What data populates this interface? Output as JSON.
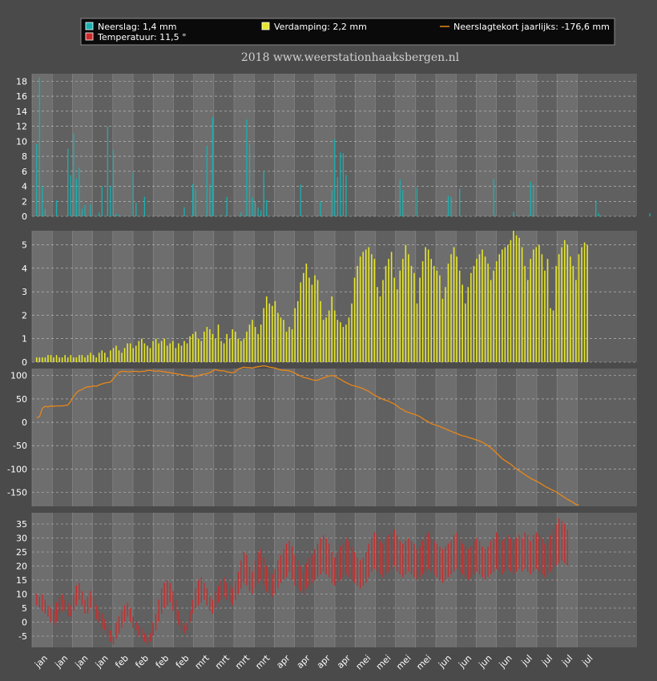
{
  "legend": {
    "neerslag": "Neerslag: 1,4 mm",
    "verdamping": "Verdamping: 2,2 mm",
    "tekort": "Neerslagtekort jaarlijks: -176,6 mm",
    "temperatuur": "Temperatuur: 11,5 °"
  },
  "subtitle": "2018  www.weerstationhaaksbergen.nl",
  "colors": {
    "background": "#4a4a4a",
    "plot_light": "#6e6e6e",
    "plot_dark": "#606060",
    "neerslag": "#1ab0b0",
    "verdamping": "#e6e62a",
    "tekort": "#e8861a",
    "temperatuur": "#cc2a2a"
  },
  "chart_data": [
    {
      "type": "bar",
      "name": "neerslag",
      "unit": "mm",
      "ylim": [
        0,
        19
      ],
      "yticks": [
        "0",
        "2",
        "4",
        "6",
        "8",
        "10",
        "12",
        "14",
        "16",
        "18"
      ],
      "tickvals": [
        0,
        2,
        4,
        6,
        8,
        10,
        12,
        14,
        16,
        18
      ],
      "grid": true,
      "values": [
        9.6,
        18.5,
        4,
        1,
        0,
        0,
        0,
        2.1,
        0,
        0,
        0,
        9,
        5.5,
        11,
        5,
        6.5,
        1,
        1.5,
        0,
        1.6,
        0,
        0,
        0.5,
        4,
        0,
        12,
        4,
        8.9,
        0.3,
        0.2,
        0,
        0,
        0,
        0,
        5.8,
        1.8,
        0,
        0,
        2.6,
        0,
        0,
        0,
        0,
        0,
        0,
        0,
        0,
        0,
        0,
        0,
        0,
        0,
        1.2,
        0,
        0,
        4.3,
        3.6,
        0,
        0,
        0,
        9.4,
        4.2,
        13.2,
        0,
        0,
        0.2,
        0,
        2.6,
        0,
        0,
        0,
        0,
        0.5,
        0,
        12.9,
        9.7,
        2.5,
        1.9,
        1.2,
        0.8,
        6,
        2.2,
        0,
        0,
        0,
        0,
        0,
        0,
        0,
        0,
        0,
        0,
        0,
        4.2,
        0,
        0,
        0,
        0,
        0,
        0,
        2,
        0,
        0,
        0,
        3.5,
        10.3,
        5.2,
        8.5,
        8.4,
        5.5,
        0,
        0,
        0,
        0,
        0,
        0,
        0,
        0,
        0,
        0,
        0,
        0,
        0,
        0,
        0,
        0,
        0,
        0,
        4.9,
        3.5,
        0,
        0,
        0,
        0,
        3.8,
        0,
        0,
        0,
        0,
        0,
        0,
        0,
        0,
        0,
        0,
        2.7,
        2.6,
        0,
        0,
        3.7,
        0,
        0,
        0,
        0,
        0,
        0,
        0,
        0,
        0,
        0,
        0,
        5,
        0,
        0,
        0,
        0,
        0,
        0,
        0.6,
        0,
        0,
        0,
        0,
        0,
        4.6,
        4.2,
        0,
        0,
        0,
        0,
        0,
        0,
        0,
        0,
        0,
        0,
        0,
        0,
        0,
        0,
        0,
        0,
        0,
        0,
        0,
        0,
        0,
        2.1,
        0.4,
        0.1,
        0,
        0,
        0,
        0,
        0,
        0,
        0,
        0,
        0,
        0,
        0,
        0,
        0,
        0,
        0,
        0,
        0.4,
        0,
        0,
        0,
        0,
        0,
        0,
        0,
        0,
        0,
        0,
        0,
        0,
        0,
        0,
        0,
        0,
        0,
        0,
        0,
        0,
        0,
        0,
        0,
        0,
        0,
        0,
        0,
        0,
        0,
        0,
        0,
        0,
        0,
        0,
        0,
        0,
        0,
        0,
        0,
        0,
        0,
        0,
        0
      ]
    },
    {
      "type": "bar",
      "name": "verdamping",
      "unit": "mm",
      "ylim": [
        0,
        5.6
      ],
      "yticks": [
        "0",
        "1",
        "2",
        "3",
        "4",
        "5"
      ],
      "tickvals": [
        0,
        1,
        2,
        3,
        4,
        5
      ],
      "grid": true,
      "values": [
        0.2,
        0.2,
        0.2,
        0.2,
        0.3,
        0.3,
        0.2,
        0.3,
        0.2,
        0.2,
        0.3,
        0.2,
        0.3,
        0.2,
        0.2,
        0.3,
        0.3,
        0.2,
        0.3,
        0.4,
        0.3,
        0.2,
        0.4,
        0.5,
        0.4,
        0.2,
        0.5,
        0.6,
        0.7,
        0.5,
        0.4,
        0.6,
        0.8,
        0.8,
        0.6,
        0.7,
        0.9,
        1.0,
        0.8,
        0.7,
        0.6,
        0.9,
        1.0,
        0.8,
        0.9,
        1.0,
        0.7,
        0.8,
        0.9,
        0.6,
        0.8,
        0.7,
        0.9,
        0.8,
        1.1,
        1.2,
        1.3,
        1.0,
        0.9,
        1.3,
        1.5,
        1.4,
        1.2,
        1.0,
        1.6,
        0.9,
        0.8,
        1.2,
        1.0,
        1.4,
        1.3,
        1.0,
        0.9,
        1.0,
        1.3,
        1.6,
        1.8,
        1.5,
        1.2,
        1.6,
        2.3,
        2.8,
        2.5,
        2.4,
        2.6,
        2.1,
        1.9,
        1.8,
        1.3,
        1.5,
        1.4,
        2.3,
        2.6,
        3.4,
        3.8,
        4.2,
        3.6,
        3.3,
        3.7,
        3.5,
        2.6,
        1.8,
        1.9,
        2.2,
        2.8,
        2.2,
        1.8,
        1.7,
        1.5,
        1.6,
        1.9,
        2.5,
        3.6,
        4.1,
        4.5,
        4.7,
        4.8,
        4.9,
        4.6,
        4.4,
        3.2,
        2.8,
        3.5,
        4.1,
        4.4,
        4.7,
        3.6,
        3.1,
        3.9,
        4.4,
        5.0,
        4.6,
        4.1,
        3.8,
        2.5,
        3.6,
        4.3,
        4.9,
        4.8,
        4.4,
        4.1,
        3.9,
        3.7,
        2.7,
        3.2,
        4.2,
        4.6,
        4.9,
        4.5,
        3.9,
        3.3,
        2.5,
        3.2,
        3.8,
        4.1,
        4.4,
        4.6,
        4.8,
        4.5,
        4.2,
        3.5,
        3.9,
        4.3,
        4.6,
        4.8,
        4.9,
        5.0,
        5.2,
        5.6,
        5.4,
        5.3,
        4.9,
        4.1,
        3.5,
        4.4,
        4.8,
        4.9,
        5.0,
        4.6,
        3.9,
        4.4,
        2.3,
        2.2,
        4.1,
        4.6,
        4.9,
        5.2,
        5.0,
        4.5,
        4.1,
        3.5,
        4.6,
        4.9,
        5.1,
        5.0
      ],
      "note": ""
    },
    {
      "type": "line",
      "name": "neerslagtekort",
      "unit": "mm",
      "ylim": [
        -180,
        115
      ],
      "yticks": [
        "100",
        "50",
        "0",
        "-50",
        "-100",
        "-150"
      ],
      "tickvals": [
        100,
        50,
        0,
        -50,
        -100,
        -150
      ],
      "grid": true,
      "values": [
        10,
        12,
        30,
        34,
        33,
        35,
        34,
        35,
        35,
        35,
        36,
        37,
        45,
        55,
        63,
        68,
        70,
        74,
        76,
        76,
        78,
        77,
        80,
        82,
        84,
        85,
        86,
        93,
        100,
        107,
        109,
        109,
        108,
        108,
        109,
        109,
        108,
        109,
        109,
        111,
        111,
        110,
        109,
        110,
        109,
        108,
        107,
        106,
        105,
        104,
        103,
        102,
        101,
        100,
        99,
        98,
        98,
        100,
        102,
        103,
        104,
        106,
        110,
        113,
        111,
        110,
        110,
        108,
        107,
        106,
        108,
        114,
        116,
        118,
        117,
        117,
        116,
        118,
        119,
        120,
        121,
        120,
        118,
        117,
        116,
        114,
        112,
        111,
        111,
        110,
        108,
        105,
        102,
        99,
        96,
        95,
        93,
        91,
        90,
        90,
        93,
        95,
        97,
        99,
        100,
        99,
        95,
        92,
        88,
        85,
        82,
        79,
        78,
        76,
        74,
        72,
        69,
        66,
        62,
        58,
        55,
        52,
        49,
        47,
        45,
        42,
        39,
        35,
        30,
        27,
        23,
        21,
        19,
        17,
        15,
        12,
        8,
        4,
        1,
        -3,
        -5,
        -7,
        -9,
        -12,
        -14,
        -17,
        -19,
        -22,
        -24,
        -27,
        -29,
        -30,
        -32,
        -34,
        -36,
        -38,
        -40,
        -43,
        -46,
        -50,
        -55,
        -60,
        -66,
        -72,
        -78,
        -82,
        -86,
        -90,
        -95,
        -100,
        -104,
        -108,
        -112,
        -116,
        -120,
        -123,
        -126,
        -129,
        -133,
        -137,
        -140,
        -143,
        -146,
        -149,
        -153,
        -157,
        -161,
        -165,
        -168,
        -172,
        -176,
        -176.6
      ],
      "note": ""
    },
    {
      "type": "bar",
      "name": "temperatuur",
      "unit": "°C",
      "ylim": [
        -9,
        39
      ],
      "yticks": [
        "35",
        "30",
        "25",
        "20",
        "15",
        "10",
        "5",
        "0",
        "-5"
      ],
      "tickvals": [
        35,
        30,
        25,
        20,
        15,
        10,
        5,
        0,
        -5
      ],
      "grid": true,
      "ranges": [
        [
          6,
          10
        ],
        [
          5,
          9
        ],
        [
          4,
          10
        ],
        [
          3,
          8
        ],
        [
          2,
          6
        ],
        [
          0,
          5
        ],
        [
          -1,
          4
        ],
        [
          0,
          7
        ],
        [
          3,
          9
        ],
        [
          4,
          10
        ],
        [
          4,
          8
        ],
        [
          2,
          7
        ],
        [
          2,
          6
        ],
        [
          4,
          10
        ],
        [
          6,
          13
        ],
        [
          8,
          14
        ],
        [
          6,
          11
        ],
        [
          3,
          8
        ],
        [
          3,
          9
        ],
        [
          5,
          11
        ],
        [
          4,
          9
        ],
        [
          1,
          6
        ],
        [
          0,
          4
        ],
        [
          -2,
          3
        ],
        [
          -3,
          1
        ],
        [
          -5,
          -1
        ],
        [
          -7,
          -3
        ],
        [
          -8,
          -5
        ],
        [
          -6,
          0
        ],
        [
          -4,
          2
        ],
        [
          -2,
          4
        ],
        [
          0,
          6
        ],
        [
          2,
          7
        ],
        [
          0,
          5
        ],
        [
          -2,
          2
        ],
        [
          -3,
          0
        ],
        [
          -5,
          -1
        ],
        [
          -6,
          -2
        ],
        [
          -7,
          -4
        ],
        [
          -8,
          -5
        ],
        [
          -7,
          -4
        ],
        [
          -5,
          0
        ],
        [
          -3,
          3
        ],
        [
          0,
          8
        ],
        [
          3,
          12
        ],
        [
          5,
          14
        ],
        [
          6,
          15
        ],
        [
          7,
          14
        ],
        [
          4,
          11
        ],
        [
          1,
          8
        ],
        [
          -1,
          4
        ],
        [
          -3,
          1
        ],
        [
          -4,
          -1
        ],
        [
          -3,
          0
        ],
        [
          0,
          4
        ],
        [
          3,
          8
        ],
        [
          5,
          12
        ],
        [
          6,
          15
        ],
        [
          7,
          16
        ],
        [
          8,
          14
        ],
        [
          6,
          12
        ],
        [
          4,
          9
        ],
        [
          3,
          8
        ],
        [
          5,
          11
        ],
        [
          7,
          13
        ],
        [
          8,
          15
        ],
        [
          9,
          16
        ],
        [
          8,
          14
        ],
        [
          7,
          13
        ],
        [
          6,
          12
        ],
        [
          8,
          15
        ],
        [
          10,
          18
        ],
        [
          12,
          22
        ],
        [
          14,
          25
        ],
        [
          13,
          24
        ],
        [
          11,
          20
        ],
        [
          10,
          18
        ],
        [
          12,
          22
        ],
        [
          14,
          25
        ],
        [
          15,
          26
        ],
        [
          13,
          23
        ],
        [
          11,
          20
        ],
        [
          10,
          18
        ],
        [
          9,
          17
        ],
        [
          10,
          19
        ],
        [
          12,
          22
        ],
        [
          14,
          24
        ],
        [
          15,
          26
        ],
        [
          16,
          28
        ],
        [
          18,
          29
        ],
        [
          15,
          27
        ],
        [
          13,
          24
        ],
        [
          12,
          22
        ],
        [
          11,
          20
        ],
        [
          10,
          18
        ],
        [
          12,
          21
        ],
        [
          13,
          23
        ],
        [
          14,
          24
        ],
        [
          15,
          26
        ],
        [
          16,
          28
        ],
        [
          17,
          30
        ],
        [
          18,
          31
        ],
        [
          17,
          30
        ],
        [
          16,
          28
        ],
        [
          14,
          25
        ],
        [
          13,
          23
        ],
        [
          14,
          25
        ],
        [
          15,
          27
        ],
        [
          16,
          28
        ],
        [
          17,
          30
        ],
        [
          16,
          29
        ],
        [
          15,
          27
        ],
        [
          14,
          25
        ],
        [
          13,
          23
        ],
        [
          12,
          22
        ],
        [
          13,
          23
        ],
        [
          14,
          25
        ],
        [
          16,
          28
        ],
        [
          18,
          30
        ],
        [
          19,
          32
        ],
        [
          18,
          31
        ],
        [
          17,
          29
        ],
        [
          16,
          28
        ],
        [
          17,
          30
        ],
        [
          18,
          31
        ],
        [
          19,
          32
        ],
        [
          20,
          33
        ],
        [
          18,
          31
        ],
        [
          17,
          29
        ],
        [
          16,
          28
        ],
        [
          17,
          29
        ],
        [
          18,
          30
        ],
        [
          17,
          29
        ],
        [
          16,
          28
        ],
        [
          15,
          26
        ],
        [
          16,
          27
        ],
        [
          17,
          29
        ],
        [
          18,
          31
        ],
        [
          19,
          32
        ],
        [
          18,
          30
        ],
        [
          17,
          29
        ],
        [
          16,
          28
        ],
        [
          15,
          27
        ],
        [
          14,
          26
        ],
        [
          15,
          27
        ],
        [
          16,
          28
        ],
        [
          17,
          29
        ],
        [
          18,
          31
        ],
        [
          19,
          32
        ],
        [
          18,
          30
        ],
        [
          17,
          28
        ],
        [
          16,
          27
        ],
        [
          15,
          26
        ],
        [
          16,
          27
        ],
        [
          17,
          29
        ],
        [
          18,
          30
        ],
        [
          17,
          29
        ],
        [
          16,
          27
        ],
        [
          15,
          26
        ],
        [
          16,
          27
        ],
        [
          17,
          29
        ],
        [
          18,
          30
        ],
        [
          19,
          32
        ],
        [
          18,
          31
        ],
        [
          17,
          29
        ],
        [
          18,
          30
        ],
        [
          19,
          31
        ],
        [
          18,
          30
        ],
        [
          17,
          29
        ],
        [
          18,
          30
        ],
        [
          19,
          31
        ],
        [
          18,
          30
        ],
        [
          19,
          32
        ],
        [
          18,
          31
        ],
        [
          17,
          29
        ],
        [
          18,
          31
        ],
        [
          19,
          32
        ],
        [
          18,
          31
        ],
        [
          17,
          30
        ],
        [
          16,
          28
        ],
        [
          17,
          29
        ],
        [
          18,
          31
        ],
        [
          19,
          33
        ],
        [
          20,
          35
        ],
        [
          21,
          37
        ],
        [
          22,
          36
        ],
        [
          21,
          35
        ],
        [
          20,
          33
        ]
      ]
    }
  ],
  "x_axis": {
    "labels": [
      "jan",
      "jan",
      "jan",
      "jan",
      "feb",
      "feb",
      "feb",
      "feb",
      "mrt",
      "mrt",
      "mrt",
      "mrt",
      "apr",
      "apr",
      "apr",
      "apr",
      "mei",
      "mei",
      "mei",
      "mei",
      "jun",
      "jun",
      "jun",
      "jun",
      "jul",
      "jul",
      "jul",
      "jul"
    ]
  }
}
